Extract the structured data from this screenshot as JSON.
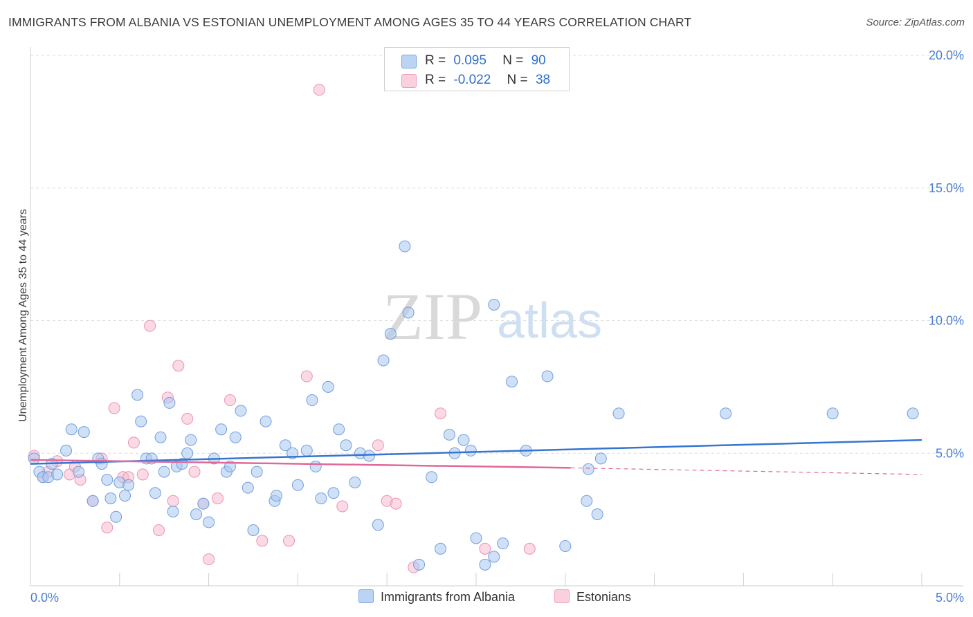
{
  "header": {
    "title": "IMMIGRANTS FROM ALBANIA VS ESTONIAN UNEMPLOYMENT AMONG AGES 35 TO 44 YEARS CORRELATION CHART",
    "source": "Source: ZipAtlas.com"
  },
  "watermark": {
    "zip": "ZIP",
    "atlas": "atlas"
  },
  "legend": {
    "r_label": "R =",
    "n_label": "N =",
    "rows": [
      {
        "r": "0.095",
        "n": "90",
        "color": "#a9c8f0"
      },
      {
        "r": "-0.022",
        "n": "38",
        "color": "#f7bcd0"
      }
    ]
  },
  "bottom_legend": {
    "albania": "Immigrants from Albania",
    "estonians": "Estonians"
  },
  "chart_data": {
    "type": "scatter",
    "title": "IMMIGRANTS FROM ALBANIA VS ESTONIAN UNEMPLOYMENT AMONG AGES 35 TO 44 YEARS CORRELATION CHART",
    "xlabel": "",
    "ylabel": "Unemployment Among Ages 35 to 44 years",
    "xlim": [
      0,
      5
    ],
    "ylim": [
      0,
      20
    ],
    "x_tick_labels": [
      "0.0%",
      "5.0%"
    ],
    "y_ticks": [
      5,
      10,
      15,
      20
    ],
    "y_tick_labels": [
      "5.0%",
      "10.0%",
      "15.0%",
      "20.0%"
    ],
    "grid": "horizontal dashed",
    "legend_position": "top-center",
    "series": [
      {
        "name": "Immigrants from Albania",
        "color": "#a9c8f0",
        "stroke": "#6f9fdc",
        "trend": {
          "x": [
            0,
            5
          ],
          "y": [
            4.6,
            5.5
          ],
          "color": "#3575d1"
        },
        "points": [
          [
            0.02,
            4.8
          ],
          [
            0.05,
            4.3
          ],
          [
            0.07,
            4.1
          ],
          [
            0.1,
            4.1
          ],
          [
            0.12,
            4.6
          ],
          [
            0.15,
            4.2
          ],
          [
            0.2,
            5.1
          ],
          [
            0.23,
            5.9
          ],
          [
            0.27,
            4.3
          ],
          [
            0.3,
            5.8
          ],
          [
            0.35,
            3.2
          ],
          [
            0.38,
            4.8
          ],
          [
            0.4,
            4.6
          ],
          [
            0.43,
            4.0
          ],
          [
            0.45,
            3.3
          ],
          [
            0.48,
            2.6
          ],
          [
            0.5,
            3.9
          ],
          [
            0.53,
            3.4
          ],
          [
            0.55,
            3.8
          ],
          [
            0.6,
            7.2
          ],
          [
            0.62,
            6.2
          ],
          [
            0.65,
            4.8
          ],
          [
            0.68,
            4.8
          ],
          [
            0.7,
            3.5
          ],
          [
            0.73,
            5.6
          ],
          [
            0.75,
            4.3
          ],
          [
            0.78,
            6.9
          ],
          [
            0.8,
            2.8
          ],
          [
            0.82,
            4.5
          ],
          [
            0.85,
            4.6
          ],
          [
            0.88,
            5.0
          ],
          [
            0.9,
            5.5
          ],
          [
            0.93,
            2.7
          ],
          [
            0.97,
            3.1
          ],
          [
            1.0,
            2.4
          ],
          [
            1.03,
            4.8
          ],
          [
            1.07,
            5.9
          ],
          [
            1.1,
            4.3
          ],
          [
            1.12,
            4.5
          ],
          [
            1.15,
            5.6
          ],
          [
            1.18,
            6.6
          ],
          [
            1.22,
            3.7
          ],
          [
            1.25,
            2.1
          ],
          [
            1.27,
            4.3
          ],
          [
            1.32,
            6.2
          ],
          [
            1.37,
            3.2
          ],
          [
            1.38,
            3.4
          ],
          [
            1.43,
            5.3
          ],
          [
            1.47,
            5.0
          ],
          [
            1.5,
            3.8
          ],
          [
            1.55,
            5.1
          ],
          [
            1.58,
            7.0
          ],
          [
            1.6,
            4.5
          ],
          [
            1.63,
            3.3
          ],
          [
            1.67,
            7.5
          ],
          [
            1.7,
            3.5
          ],
          [
            1.73,
            5.9
          ],
          [
            1.77,
            5.3
          ],
          [
            1.82,
            3.9
          ],
          [
            1.85,
            5.0
          ],
          [
            1.9,
            4.9
          ],
          [
            1.95,
            2.3
          ],
          [
            1.98,
            8.5
          ],
          [
            2.02,
            9.5
          ],
          [
            2.1,
            12.8
          ],
          [
            2.12,
            10.3
          ],
          [
            2.18,
            0.8
          ],
          [
            2.25,
            4.1
          ],
          [
            2.3,
            1.4
          ],
          [
            2.35,
            5.7
          ],
          [
            2.38,
            5.0
          ],
          [
            2.43,
            5.5
          ],
          [
            2.47,
            5.1
          ],
          [
            2.5,
            1.8
          ],
          [
            2.55,
            0.8
          ],
          [
            2.6,
            1.1
          ],
          [
            2.6,
            10.6
          ],
          [
            2.65,
            1.6
          ],
          [
            2.7,
            7.7
          ],
          [
            2.78,
            5.1
          ],
          [
            2.9,
            7.9
          ],
          [
            3.0,
            1.5
          ],
          [
            3.12,
            3.2
          ],
          [
            3.18,
            2.7
          ],
          [
            3.13,
            4.4
          ],
          [
            3.2,
            4.8
          ],
          [
            3.3,
            6.5
          ],
          [
            3.9,
            6.5
          ],
          [
            4.5,
            6.5
          ],
          [
            4.95,
            6.5
          ]
        ]
      },
      {
        "name": "Estonians",
        "color": "#f7bcd0",
        "stroke": "#e993b2",
        "trend": {
          "x": [
            0,
            3.03
          ],
          "y": [
            4.75,
            4.45
          ],
          "dashed_to": [
            5,
            4.2
          ],
          "color": "#e0689a"
        },
        "points": [
          [
            0.02,
            4.9
          ],
          [
            0.07,
            4.1
          ],
          [
            0.1,
            4.3
          ],
          [
            0.15,
            4.7
          ],
          [
            0.22,
            4.2
          ],
          [
            0.25,
            4.5
          ],
          [
            0.28,
            4.0
          ],
          [
            0.35,
            3.2
          ],
          [
            0.4,
            4.8
          ],
          [
            0.43,
            2.2
          ],
          [
            0.47,
            6.7
          ],
          [
            0.52,
            4.1
          ],
          [
            0.55,
            4.1
          ],
          [
            0.58,
            5.4
          ],
          [
            0.63,
            4.2
          ],
          [
            0.67,
            9.8
          ],
          [
            0.72,
            2.1
          ],
          [
            0.77,
            7.1
          ],
          [
            0.8,
            3.2
          ],
          [
            0.83,
            8.3
          ],
          [
            0.88,
            6.3
          ],
          [
            0.92,
            4.3
          ],
          [
            0.97,
            3.1
          ],
          [
            1.0,
            1.0
          ],
          [
            1.05,
            3.3
          ],
          [
            1.12,
            7.0
          ],
          [
            1.3,
            1.7
          ],
          [
            1.45,
            1.7
          ],
          [
            1.55,
            7.9
          ],
          [
            1.62,
            18.7
          ],
          [
            1.75,
            3.0
          ],
          [
            1.95,
            5.3
          ],
          [
            2.0,
            3.2
          ],
          [
            2.05,
            3.1
          ],
          [
            2.15,
            0.7
          ],
          [
            2.3,
            6.5
          ],
          [
            2.55,
            1.4
          ],
          [
            2.8,
            1.4
          ]
        ]
      }
    ]
  }
}
